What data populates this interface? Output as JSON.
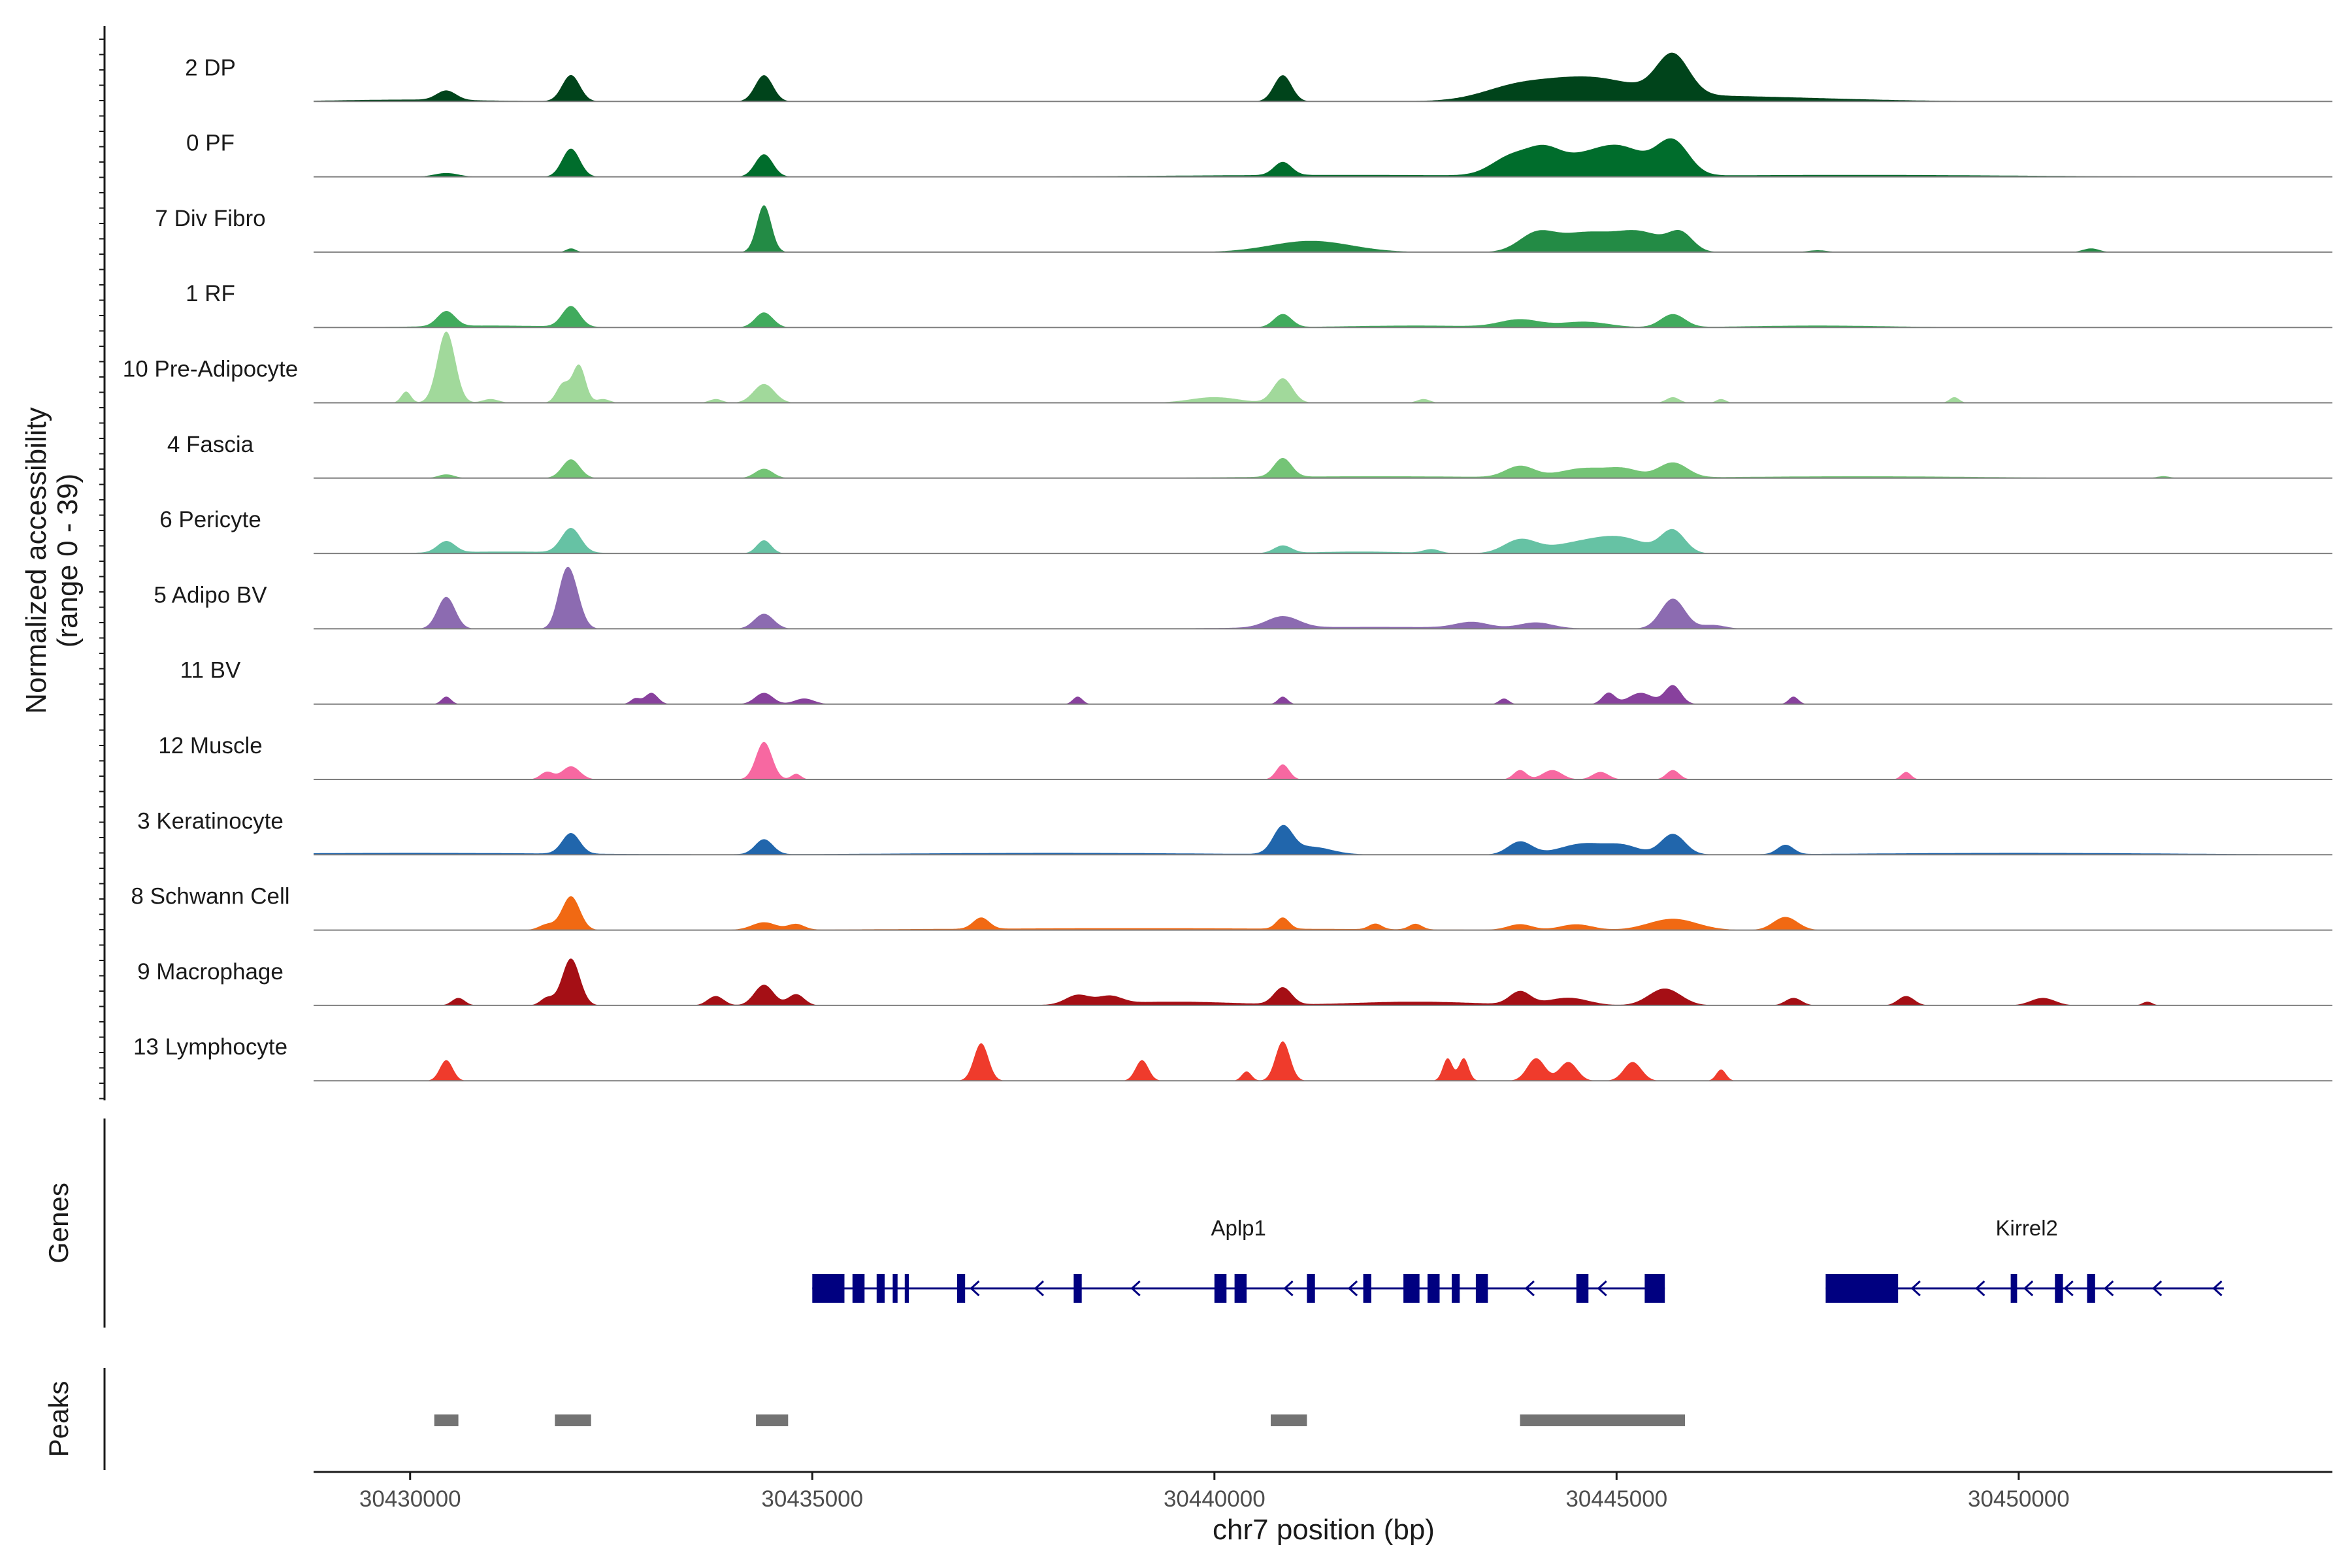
{
  "chart_data": {
    "type": "area",
    "title": "",
    "ylabel": [
      "Normalized accessibility",
      "(range 0 - 39)"
    ],
    "xlabel": "chr7 position (bp)",
    "xlim": [
      30428800,
      30453900
    ],
    "ylim": [
      0,
      39
    ],
    "x_ticks": [
      30430000,
      30435000,
      30440000,
      30445000,
      30450000
    ],
    "x_tick_labels": [
      "30430000",
      "30435000",
      "30440000",
      "30445000",
      "30450000"
    ],
    "panels": {
      "genes": "Genes",
      "peaks": "Peaks"
    },
    "tracks": [
      {
        "name": "2 DP",
        "color": "#00441b",
        "peaks": [
          [
            30430450,
            5,
            120
          ],
          [
            30432000,
            14,
            110
          ],
          [
            30434400,
            14,
            110
          ],
          [
            30440850,
            14,
            110
          ],
          [
            30443700,
            5,
            400
          ],
          [
            30444600,
            11,
            600
          ],
          [
            30445700,
            21,
            200
          ],
          [
            30446000,
            3,
            1500
          ],
          [
            30430000,
            1,
            900
          ]
        ]
      },
      {
        "name": "0 PF",
        "color": "#006d2c",
        "peaks": [
          [
            30430450,
            2,
            150
          ],
          [
            30432000,
            15,
            110
          ],
          [
            30434400,
            12,
            110
          ],
          [
            30440850,
            7,
            110
          ],
          [
            30443700,
            10,
            250
          ],
          [
            30444100,
            9,
            200
          ],
          [
            30444600,
            10,
            400
          ],
          [
            30445100,
            11,
            300
          ],
          [
            30445700,
            18,
            200
          ],
          [
            30441500,
            1,
            2000
          ],
          [
            30448000,
            1,
            2000
          ]
        ]
      },
      {
        "name": "7 Div Fibro",
        "color": "#238b45",
        "peaks": [
          [
            30432000,
            2,
            60
          ],
          [
            30434400,
            25,
            90
          ],
          [
            30441200,
            6,
            500
          ],
          [
            30444000,
            9,
            220
          ],
          [
            30444600,
            10,
            350
          ],
          [
            30445300,
            10,
            300
          ],
          [
            30445800,
            9,
            150
          ],
          [
            30447500,
            1,
            120
          ],
          [
            30450900,
            2,
            100
          ]
        ]
      },
      {
        "name": "1 RF",
        "color": "#41ab5d",
        "peaks": [
          [
            30430450,
            8,
            110
          ],
          [
            30432000,
            11,
            110
          ],
          [
            30434400,
            8,
            110
          ],
          [
            30440850,
            7,
            110
          ],
          [
            30443800,
            4,
            250
          ],
          [
            30444600,
            3,
            300
          ],
          [
            30445700,
            7,
            150
          ],
          [
            30431000,
            1,
            800
          ],
          [
            30442500,
            1,
            900
          ],
          [
            30447500,
            1,
            900
          ]
        ]
      },
      {
        "name": "10 Pre-Adipocyte",
        "color": "#a1d99b",
        "peaks": [
          [
            30429950,
            6,
            60
          ],
          [
            30430450,
            38,
            110
          ],
          [
            30431000,
            2,
            100
          ],
          [
            30431900,
            10,
            80
          ],
          [
            30432100,
            20,
            80
          ],
          [
            30432400,
            2,
            80
          ],
          [
            30433800,
            2,
            80
          ],
          [
            30434400,
            10,
            130
          ],
          [
            30440000,
            3,
            300
          ],
          [
            30440850,
            13,
            120
          ],
          [
            30442600,
            2,
            80
          ],
          [
            30445700,
            3,
            80
          ],
          [
            30446300,
            2,
            60
          ],
          [
            30449200,
            3,
            60
          ]
        ]
      },
      {
        "name": "4 Fascia",
        "color": "#74c476",
        "peaks": [
          [
            30430450,
            2,
            100
          ],
          [
            30432000,
            10,
            110
          ],
          [
            30434400,
            5,
            110
          ],
          [
            30440850,
            10,
            110
          ],
          [
            30443800,
            6,
            180
          ],
          [
            30444600,
            5,
            300
          ],
          [
            30445100,
            4,
            200
          ],
          [
            30445700,
            8,
            180
          ],
          [
            30451800,
            1,
            80
          ],
          [
            30442000,
            1,
            1500
          ],
          [
            30448000,
            1,
            1500
          ]
        ]
      },
      {
        "name": "6 Pericyte",
        "color": "#66c2a4",
        "peaks": [
          [
            30430450,
            6,
            110
          ],
          [
            30432000,
            13,
            120
          ],
          [
            30434400,
            7,
            90
          ],
          [
            30440850,
            4,
            110
          ],
          [
            30443800,
            7,
            200
          ],
          [
            30444600,
            6,
            400
          ],
          [
            30445100,
            6,
            300
          ],
          [
            30445700,
            12,
            150
          ],
          [
            30431200,
            1,
            800
          ],
          [
            30441800,
            1,
            600
          ],
          [
            30442700,
            2,
            100
          ]
        ]
      },
      {
        "name": "5 Adipo BV",
        "color": "#8c6bb1",
        "peaks": [
          [
            30430450,
            17,
            110
          ],
          [
            30431900,
            12,
            90
          ],
          [
            30432000,
            25,
            110
          ],
          [
            30434400,
            8,
            120
          ],
          [
            30440850,
            6,
            200
          ],
          [
            30443200,
            3,
            200
          ],
          [
            30444000,
            3,
            200
          ],
          [
            30445700,
            16,
            150
          ],
          [
            30442000,
            1,
            1500
          ],
          [
            30446200,
            2,
            150
          ]
        ]
      },
      {
        "name": "11 BV",
        "color": "#88419d",
        "peaks": [
          [
            30430450,
            4,
            60
          ],
          [
            30432800,
            3,
            60
          ],
          [
            30433000,
            6,
            80
          ],
          [
            30434400,
            6,
            110
          ],
          [
            30434900,
            3,
            120
          ],
          [
            30438300,
            4,
            60
          ],
          [
            30440850,
            4,
            60
          ],
          [
            30443600,
            3,
            60
          ],
          [
            30444900,
            6,
            80
          ],
          [
            30445300,
            6,
            150
          ],
          [
            30445700,
            10,
            100
          ],
          [
            30447200,
            4,
            60
          ]
        ]
      },
      {
        "name": "12 Muscle",
        "color": "#f768a1",
        "peaks": [
          [
            30431700,
            4,
            80
          ],
          [
            30432000,
            7,
            110
          ],
          [
            30434400,
            20,
            100
          ],
          [
            30434800,
            3,
            60
          ],
          [
            30440850,
            8,
            80
          ],
          [
            30443800,
            5,
            80
          ],
          [
            30444200,
            5,
            120
          ],
          [
            30444800,
            4,
            100
          ],
          [
            30445700,
            5,
            80
          ],
          [
            30448600,
            4,
            60
          ]
        ]
      },
      {
        "name": "3 Keratinocyte",
        "color": "#2166ac",
        "peaks": [
          [
            30432000,
            11,
            110
          ],
          [
            30434400,
            8,
            110
          ],
          [
            30440850,
            14,
            120
          ],
          [
            30441200,
            4,
            250
          ],
          [
            30443800,
            7,
            150
          ],
          [
            30444600,
            6,
            300
          ],
          [
            30445100,
            4,
            200
          ],
          [
            30445700,
            11,
            150
          ],
          [
            30447100,
            5,
            100
          ],
          [
            30430000,
            1,
            2000
          ],
          [
            30438000,
            1,
            2000
          ],
          [
            30450000,
            1,
            2000
          ]
        ]
      },
      {
        "name": "8 Schwann Cell",
        "color": "#f16913",
        "peaks": [
          [
            30431700,
            3,
            100
          ],
          [
            30432000,
            18,
            110
          ],
          [
            30434400,
            4,
            150
          ],
          [
            30434800,
            3,
            100
          ],
          [
            30437100,
            6,
            100
          ],
          [
            30440850,
            6,
            80
          ],
          [
            30442000,
            3,
            80
          ],
          [
            30442500,
            3,
            80
          ],
          [
            30443800,
            3,
            150
          ],
          [
            30444500,
            3,
            200
          ],
          [
            30445700,
            6,
            300
          ],
          [
            30447100,
            7,
            150
          ],
          [
            30439000,
            1,
            2500
          ]
        ]
      },
      {
        "name": "9 Macrophage",
        "color": "#a50f15",
        "peaks": [
          [
            30430600,
            4,
            80
          ],
          [
            30431700,
            4,
            80
          ],
          [
            30432000,
            25,
            110
          ],
          [
            30433800,
            5,
            100
          ],
          [
            30434400,
            11,
            120
          ],
          [
            30434800,
            6,
            100
          ],
          [
            30438300,
            5,
            150
          ],
          [
            30438700,
            4,
            150
          ],
          [
            30440850,
            9,
            110
          ],
          [
            30443800,
            7,
            130
          ],
          [
            30444400,
            4,
            250
          ],
          [
            30445600,
            9,
            200
          ],
          [
            30447200,
            4,
            100
          ],
          [
            30448600,
            5,
            100
          ],
          [
            30450300,
            4,
            150
          ],
          [
            30451600,
            2,
            60
          ],
          [
            30439500,
            2,
            800
          ],
          [
            30442500,
            2,
            800
          ]
        ]
      },
      {
        "name": "13 Lymphocyte",
        "color": "#ef3b2c",
        "peaks": [
          [
            30430450,
            11,
            80
          ],
          [
            30437100,
            20,
            90
          ],
          [
            30439100,
            11,
            80
          ],
          [
            30440400,
            5,
            60
          ],
          [
            30440850,
            21,
            90
          ],
          [
            30442900,
            12,
            60
          ],
          [
            30443100,
            12,
            60
          ],
          [
            30444000,
            12,
            110
          ],
          [
            30444400,
            10,
            110
          ],
          [
            30445200,
            10,
            110
          ],
          [
            30446300,
            6,
            60
          ]
        ]
      }
    ],
    "genes": [
      {
        "name": "Aplp1",
        "label_pos": 30440300,
        "strand": "-",
        "start": 30435000,
        "end": 30445600,
        "exons": [
          [
            30435000,
            30435400
          ],
          [
            30435500,
            30435650
          ],
          [
            30435800,
            30435900
          ],
          [
            30436000,
            30436060
          ],
          [
            30436150,
            30436200
          ],
          [
            30436800,
            30436900
          ],
          [
            30438250,
            30438350
          ],
          [
            30440000,
            30440150
          ],
          [
            30440250,
            30440400
          ],
          [
            30441150,
            30441250
          ],
          [
            30441850,
            30441950
          ],
          [
            30442350,
            30442550
          ],
          [
            30442650,
            30442800
          ],
          [
            30442950,
            30443050
          ],
          [
            30443250,
            30443400
          ],
          [
            30444500,
            30444650
          ],
          [
            30445350,
            30445600
          ]
        ],
        "arrows": [
          30437000,
          30437800,
          30439000,
          30440900,
          30441700,
          30443900,
          30444800
        ]
      },
      {
        "name": "Kirrel2",
        "label_pos": 30450100,
        "strand": "-",
        "start": 30447600,
        "end": 30452550,
        "exons": [
          [
            30447600,
            30448500
          ],
          [
            30449900,
            30449980
          ],
          [
            30450450,
            30450550
          ],
          [
            30450850,
            30450950
          ]
        ],
        "arrows": [
          30448700,
          30449500,
          30450100,
          30450600,
          30451100,
          30451700,
          30452450
        ]
      }
    ],
    "peak_regions": [
      [
        30430300,
        30430600
      ],
      [
        30431800,
        30432250
      ],
      [
        30434300,
        30434700
      ],
      [
        30440700,
        30441150
      ],
      [
        30443800,
        30445850
      ]
    ]
  }
}
